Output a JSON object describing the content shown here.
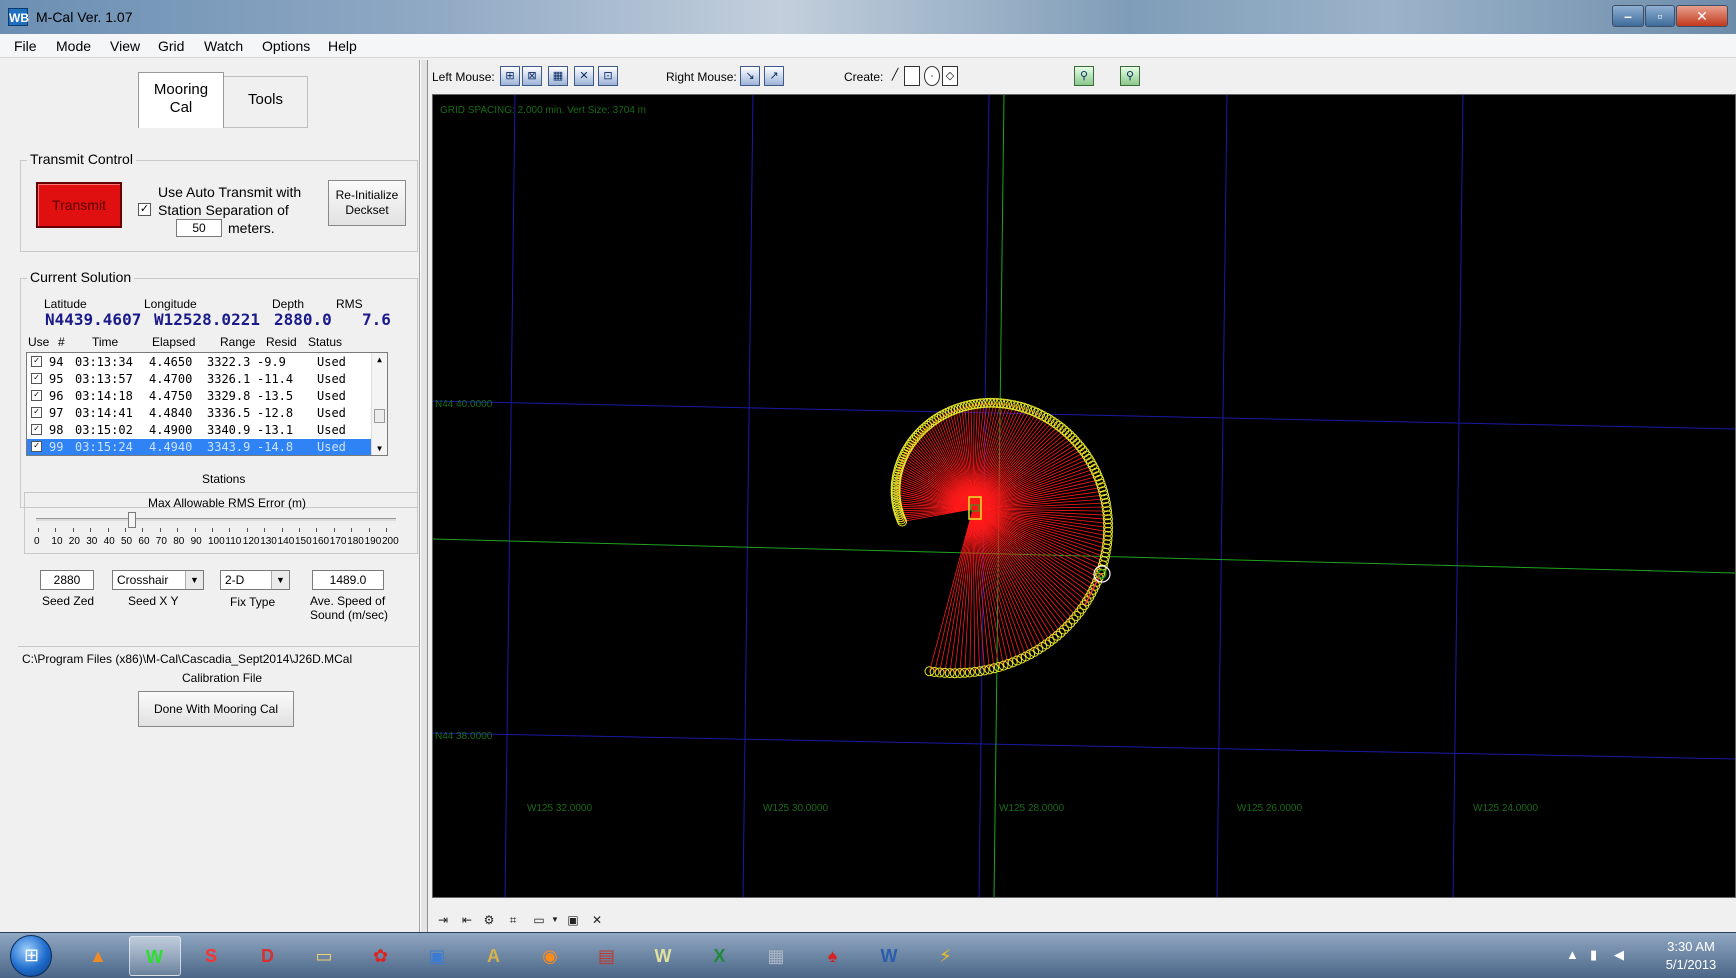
{
  "window": {
    "title": "M-Cal Ver. 1.07",
    "icon_text": "WB"
  },
  "menu": [
    "File",
    "Mode",
    "View",
    "Grid",
    "Watch",
    "Options",
    "Help"
  ],
  "tabs": {
    "mooring_line1": "Mooring",
    "mooring_line2": "Cal",
    "tools": "Tools"
  },
  "transmit": {
    "group_label": "Transmit Control",
    "button": "Transmit",
    "auto_line1": "Use Auto Transmit with",
    "auto_line2": "Station Separation of",
    "separation": "50",
    "unit": "meters.",
    "auto_checked": "✓",
    "reinit_line1": "Re-Initialize",
    "reinit_line2": "Deckset"
  },
  "solution": {
    "group_label": "Current Solution",
    "headers": {
      "lat": "Latitude",
      "lon": "Longitude",
      "depth": "Depth",
      "rms": "RMS"
    },
    "values": {
      "lat": "N4439.4607",
      "lon": "W12528.0221",
      "depth": "2880.0",
      "rms": "7.6"
    },
    "list_headers": {
      "use": "Use",
      "num": "#",
      "time": "Time",
      "elapsed": "Elapsed",
      "range": "Range",
      "resid": "Resid",
      "status": "Status"
    },
    "rows": [
      {
        "num": "94",
        "time": "03:13:34",
        "elapsed": "4.4650",
        "range": "3322.3",
        "resid": "-9.9",
        "status": "Used"
      },
      {
        "num": "95",
        "time": "03:13:57",
        "elapsed": "4.4700",
        "range": "3326.1",
        "resid": "-11.4",
        "status": "Used"
      },
      {
        "num": "96",
        "time": "03:14:18",
        "elapsed": "4.4750",
        "range": "3329.8",
        "resid": "-13.5",
        "status": "Used"
      },
      {
        "num": "97",
        "time": "03:14:41",
        "elapsed": "4.4840",
        "range": "3336.5",
        "resid": "-12.8",
        "status": "Used"
      },
      {
        "num": "98",
        "time": "03:15:02",
        "elapsed": "4.4900",
        "range": "3340.9",
        "resid": "-13.1",
        "status": "Used"
      },
      {
        "num": "99",
        "time": "03:15:24",
        "elapsed": "4.4940",
        "range": "3343.9",
        "resid": "-14.8",
        "status": "Used"
      }
    ],
    "row_checked": "✓",
    "stations_label": "Stations"
  },
  "rms_slider": {
    "label": "Max Allowable RMS Error (m)",
    "ticks": [
      "0",
      "10",
      "20",
      "30",
      "40",
      "50",
      "60",
      "70",
      "80",
      "90",
      "100",
      "110",
      "120",
      "130",
      "140",
      "150",
      "160",
      "170",
      "180",
      "190",
      "200"
    ],
    "value": 55,
    "max": 200
  },
  "settings": {
    "seed_zed": "2880",
    "seed_zed_label": "Seed Zed",
    "seed_xy": "Crosshair",
    "seed_xy_label": "Seed X Y",
    "fix_type": "2-D",
    "fix_type_label": "Fix Type",
    "sound_speed": "1489.0",
    "sound_label_line1": "Ave. Speed of",
    "sound_label_line2": "Sound (m/sec)"
  },
  "calibration": {
    "path": "C:\\Program Files (x86)\\M-Cal\\Cascadia_Sept2014\\J26D.MCal",
    "label": "Calibration File",
    "done_button": "Done With Mooring Cal"
  },
  "map_toolbar": {
    "left_mouse": "Left Mouse:",
    "right_mouse": "Right Mouse:",
    "create": "Create:"
  },
  "map": {
    "grid_info": "GRID SPACING: 2.000 min.  Vert Size: 3704 m",
    "lat_labels": [
      "N44 40.0000",
      "N44 38.0000"
    ],
    "lon_labels": [
      "W125 32.0000",
      "W125 30.0000",
      "W125 28.0000",
      "W125 26.0000",
      "W125 24.0000"
    ],
    "grid_color": "#1a1aa6",
    "axis_color": "#1fa31f",
    "ray_color": "#ff1a1a",
    "station_color": "#e6e62a"
  },
  "taskbar": {
    "time": "3:30 AM",
    "date": "5/1/2013",
    "apps": [
      "matlab-icon",
      "wb-icon",
      "solidworks-icon",
      "autocad-icon",
      "folder-icon",
      "tool-icon",
      "monitor-icon",
      "font-icon",
      "firefox-icon",
      "toolbox-icon",
      "winamp-icon",
      "excel-icon",
      "calculator-icon",
      "acrobat-icon",
      "word-icon",
      "plugin-icon"
    ]
  }
}
